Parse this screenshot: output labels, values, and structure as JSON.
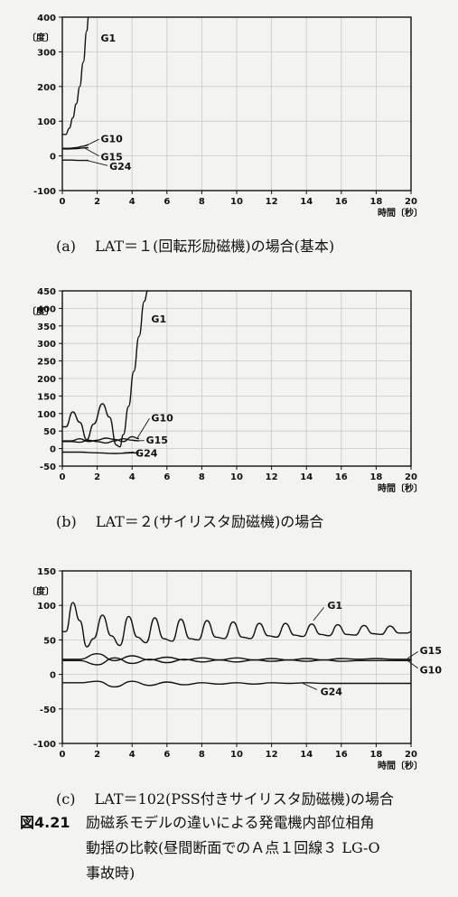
{
  "chart_data": [
    {
      "type": "line",
      "caption": "(a)　 LAT＝１(回転形励磁機)の場合(基本)",
      "ylabel": "〔度〕",
      "xlabel": "時間〔秒〕",
      "xlim": [
        0,
        20
      ],
      "ylim": [
        -100,
        400
      ],
      "xticks": [
        0,
        2,
        4,
        6,
        8,
        10,
        12,
        14,
        16,
        18,
        20
      ],
      "yticks": [
        -100,
        0,
        100,
        200,
        300,
        400
      ],
      "grid": true,
      "series": [
        {
          "name": "G1",
          "x": [
            0,
            0.2,
            0.4,
            0.6,
            0.8,
            1.0,
            1.2,
            1.4,
            1.5
          ],
          "y": [
            62,
            62,
            80,
            110,
            150,
            200,
            270,
            360,
            400
          ]
        },
        {
          "name": "G10",
          "x": [
            0,
            0.4,
            0.8,
            1.2,
            1.5
          ],
          "y": [
            22,
            22,
            24,
            28,
            32
          ]
        },
        {
          "name": "G15",
          "x": [
            0,
            0.4,
            0.8,
            1.2,
            1.5
          ],
          "y": [
            20,
            20,
            21,
            23,
            24
          ]
        },
        {
          "name": "G24",
          "x": [
            0,
            0.5,
            1.0,
            1.5
          ],
          "y": [
            -12,
            -12,
            -13,
            -13
          ]
        }
      ]
    },
    {
      "type": "line",
      "caption": "(b)　 LAT＝２(サイリスタ励磁機)の場合",
      "ylabel": "〔度〕",
      "xlabel": "時間〔秒〕",
      "xlim": [
        0,
        20
      ],
      "ylim": [
        -50,
        450
      ],
      "xticks": [
        0,
        2,
        4,
        6,
        8,
        10,
        12,
        14,
        16,
        18,
        20
      ],
      "yticks": [
        -50,
        0,
        50,
        100,
        150,
        200,
        250,
        300,
        350,
        400,
        450
      ],
      "grid": true,
      "series": [
        {
          "name": "G1",
          "x": [
            0,
            0.2,
            0.6,
            1.0,
            1.4,
            1.8,
            2.3,
            2.7,
            3.1,
            3.3,
            3.5,
            3.8,
            4.1,
            4.4,
            4.7,
            4.9
          ],
          "y": [
            62,
            62,
            105,
            75,
            25,
            70,
            128,
            90,
            10,
            5,
            40,
            120,
            220,
            320,
            420,
            450
          ]
        },
        {
          "name": "G10",
          "x": [
            0,
            0.5,
            1.0,
            1.5,
            2.0,
            2.5,
            3.0,
            3.5,
            4.0,
            4.4
          ],
          "y": [
            22,
            22,
            28,
            20,
            24,
            30,
            26,
            20,
            34,
            28
          ]
        },
        {
          "name": "G15",
          "x": [
            0,
            0.5,
            1.0,
            1.5,
            2.0,
            2.5,
            3.0,
            3.5,
            4.0,
            4.4
          ],
          "y": [
            20,
            20,
            18,
            24,
            20,
            16,
            22,
            28,
            24,
            22
          ]
        },
        {
          "name": "G24",
          "x": [
            0,
            1.0,
            2.0,
            3.0,
            4.0,
            4.4
          ],
          "y": [
            -10,
            -10,
            -12,
            -14,
            -12,
            -12
          ]
        }
      ]
    },
    {
      "type": "line",
      "caption": "(c)　 LAT＝102(PSS付きサイリスタ励磁機)の場合",
      "ylabel": "〔度〕",
      "xlabel": "時間〔秒〕",
      "xlim": [
        0,
        20
      ],
      "ylim": [
        -100,
        150
      ],
      "xticks": [
        0,
        2,
        4,
        6,
        8,
        10,
        12,
        14,
        16,
        18,
        20
      ],
      "yticks": [
        -100,
        -50,
        0,
        50,
        100,
        150
      ],
      "grid": true,
      "series": [
        {
          "name": "G1",
          "x": [
            0,
            0.2,
            0.6,
            1.0,
            1.4,
            1.8,
            2.3,
            2.8,
            3.3,
            3.8,
            4.3,
            4.8,
            5.3,
            5.8,
            6.3,
            6.8,
            7.3,
            7.8,
            8.3,
            8.8,
            9.3,
            9.8,
            10.3,
            10.8,
            11.3,
            11.8,
            12.3,
            12.8,
            13.3,
            13.8,
            14.3,
            14.8,
            15.3,
            15.8,
            16.3,
            16.8,
            17.3,
            17.8,
            18.3,
            18.8,
            19.3,
            19.8,
            20
          ],
          "y": [
            62,
            62,
            104,
            78,
            40,
            52,
            86,
            56,
            42,
            84,
            54,
            46,
            82,
            52,
            48,
            80,
            52,
            50,
            78,
            54,
            52,
            76,
            54,
            52,
            74,
            56,
            54,
            74,
            57,
            55,
            73,
            58,
            56,
            72,
            58,
            57,
            71,
            59,
            58,
            70,
            60,
            60,
            62
          ]
        },
        {
          "name": "G15",
          "x": [
            0,
            1,
            2,
            3,
            4,
            5,
            6,
            7,
            8,
            9,
            10,
            11,
            12,
            13,
            14,
            15,
            16,
            17,
            18,
            19,
            20
          ],
          "y": [
            22,
            22,
            30,
            20,
            27,
            21,
            25,
            21,
            24,
            21,
            24,
            21,
            23,
            21,
            23,
            21,
            23,
            22,
            23,
            22,
            22
          ]
        },
        {
          "name": "G10",
          "x": [
            0,
            1,
            2,
            3,
            4,
            5,
            6,
            7,
            8,
            9,
            10,
            11,
            12,
            13,
            14,
            15,
            16,
            17,
            18,
            19,
            20
          ],
          "y": [
            20,
            20,
            14,
            24,
            16,
            22,
            17,
            22,
            18,
            21,
            18,
            21,
            19,
            21,
            19,
            21,
            19,
            20,
            20,
            20,
            20
          ]
        },
        {
          "name": "G24",
          "x": [
            0,
            1,
            2,
            3,
            4,
            5,
            6,
            7,
            8,
            9,
            10,
            11,
            12,
            13,
            14,
            15,
            16,
            17,
            18,
            19,
            20
          ],
          "y": [
            -12,
            -12,
            -10,
            -18,
            -10,
            -16,
            -11,
            -15,
            -12,
            -14,
            -12,
            -14,
            -12,
            -13,
            -12,
            -13,
            -13,
            -13,
            -13,
            -13,
            -13
          ]
        }
      ]
    }
  ],
  "figure": {
    "number": "図4.21",
    "caption_lines": [
      "励磁系モデルの違いによる発電機内部位相角",
      "動揺の比較(昼間断面でのＡ点１回線３ LG-O",
      "事故時)"
    ]
  }
}
